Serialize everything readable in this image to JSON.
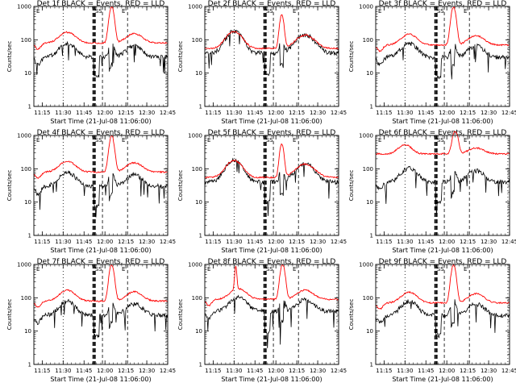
{
  "figure": {
    "ylabel": "Counts/sec",
    "xlabel": "Start Time (21-Jul-08 11:06:00)",
    "flag_left": "E",
    "flag_mid": "SS",
    "flag_right": "E",
    "colors": {
      "events": "#000000",
      "lld": "#ff0000",
      "axes": "#000000"
    }
  },
  "chart_data": [
    {
      "type": "line",
      "title": "Det 1f BLACK = Events, RED = LLD",
      "variant": "a",
      "seed": 1
    },
    {
      "type": "line",
      "title": "Det 2f BLACK = Events, RED = LLD",
      "variant": "b",
      "seed": 2
    },
    {
      "type": "line",
      "title": "Det 3f BLACK = Events, RED = LLD",
      "variant": "c",
      "seed": 3
    },
    {
      "type": "line",
      "title": "Det 4f BLACK = Events, RED = LLD",
      "variant": "a",
      "seed": 4
    },
    {
      "type": "line",
      "title": "Det 5f BLACK = Events, RED = LLD",
      "variant": "b",
      "seed": 5
    },
    {
      "type": "line",
      "title": "Det 6f BLACK = Events, RED = LLD",
      "variant": "d",
      "seed": 6
    },
    {
      "type": "line",
      "title": "Det 7f BLACK = Events, RED = LLD",
      "variant": "a",
      "seed": 7
    },
    {
      "type": "line",
      "title": "Det 8f BLACK = Events, RED = LLD",
      "variant": "e",
      "seed": 8
    },
    {
      "type": "line",
      "title": "Det 9f BLACK = Events, RED = LLD",
      "variant": "c",
      "seed": 9
    }
  ],
  "axes": {
    "xlim": [
      11.15,
      12.75
    ],
    "x_ticks": [
      11.25,
      11.5,
      11.75,
      12.0,
      12.25,
      12.5,
      12.75
    ],
    "x_tick_labels": [
      "11:15",
      "11:30",
      "11:45",
      "12:00",
      "12:15",
      "12:30",
      "12:45"
    ],
    "ylim": [
      1,
      1000
    ],
    "yscale": "log",
    "y_ticks": [
      1,
      10,
      100,
      1000
    ],
    "y_tick_labels": [
      "1",
      "10",
      "100",
      "1000"
    ],
    "vlines": [
      {
        "x": 11.5,
        "style": "dotted"
      },
      {
        "x": 11.86,
        "style": "dashed-bold"
      },
      {
        "x": 11.88,
        "style": "dashed-bold"
      },
      {
        "x": 11.97,
        "style": "dashed"
      },
      {
        "x": 12.27,
        "style": "dashed"
      },
      {
        "x": 12.73,
        "style": "dotted"
      }
    ]
  }
}
